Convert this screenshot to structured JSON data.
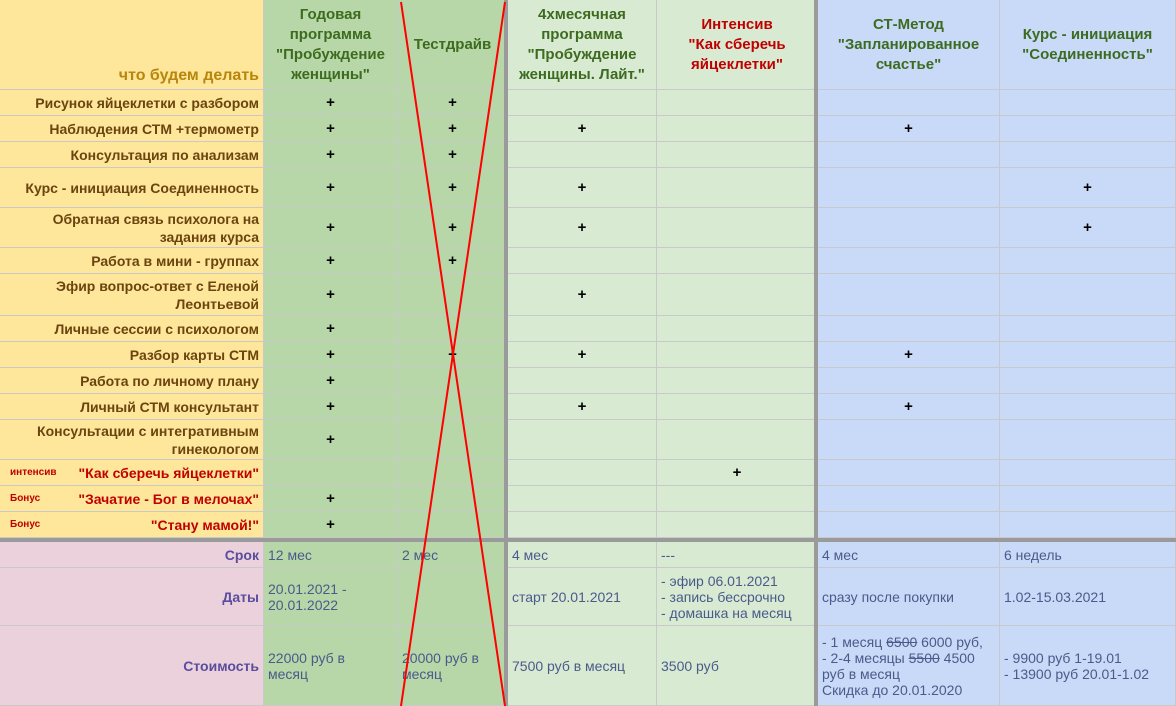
{
  "header": {
    "corner": "что будем делать",
    "columns": [
      "Годовая программа \"Пробуждение женщины\"",
      "Тестдрайв",
      "4хмесячная программа \"Пробуждение женщины. Лайт.\"",
      "Интенсив\n\"Как сберечь яйцеклетки\"",
      "СТ-Метод \"Запланированное счастье\"",
      "Курс - инициация \"Соединенность\""
    ]
  },
  "rows": [
    {
      "label": "Рисунок яйцеклетки с разбором",
      "tag": "",
      "marks": [
        "+",
        "+",
        "",
        "",
        "",
        ""
      ]
    },
    {
      "label": "Наблюдения СТМ +термометр",
      "tag": "",
      "marks": [
        "+",
        "+",
        "+",
        "",
        "+",
        ""
      ]
    },
    {
      "label": "Консультация по анализам",
      "tag": "",
      "marks": [
        "+",
        "+",
        "",
        "",
        "",
        ""
      ]
    },
    {
      "label": "Курс - инициация Соединенность",
      "tag": "",
      "marks": [
        "+",
        "+",
        "+",
        "",
        "",
        "+"
      ]
    },
    {
      "label": "Обратная связь психолога на задания курса",
      "tag": "",
      "marks": [
        "+",
        "+",
        "+",
        "",
        "",
        "+"
      ]
    },
    {
      "label": "Работа в мини - группах",
      "tag": "",
      "marks": [
        "+",
        "+",
        "",
        "",
        "",
        ""
      ]
    },
    {
      "label": "Эфир вопрос-ответ с Еленой Леонтьевой",
      "tag": "",
      "marks": [
        "+",
        "",
        "+",
        "",
        "",
        ""
      ]
    },
    {
      "label": "Личные сессии с психологом",
      "tag": "",
      "marks": [
        "+",
        "",
        "",
        "",
        "",
        ""
      ]
    },
    {
      "label": "Разбор карты СТМ",
      "tag": "",
      "marks": [
        "+",
        "+",
        "+",
        "",
        "+",
        ""
      ]
    },
    {
      "label": "Работа по личному плану",
      "tag": "",
      "marks": [
        "+",
        "",
        "",
        "",
        "",
        ""
      ]
    },
    {
      "label": "Личный СТМ консультант",
      "tag": "",
      "marks": [
        "+",
        "",
        "+",
        "",
        "+",
        ""
      ]
    },
    {
      "label": "Консультации с интегративным гинекологом",
      "tag": "",
      "marks": [
        "+",
        "",
        "",
        "",
        "",
        ""
      ]
    },
    {
      "label": "\"Как сберечь яйцеклетки\"",
      "tag": "интенсив",
      "marks": [
        "",
        "",
        "",
        "+",
        "",
        ""
      ]
    },
    {
      "label": "\"Зачатие - Бог в мелочах\"",
      "tag": "Бонус",
      "marks": [
        "+",
        "",
        "",
        "",
        "",
        ""
      ]
    },
    {
      "label": "\"Стану мамой!\"",
      "tag": "Бонус",
      "marks": [
        "+",
        "",
        "",
        "",
        "",
        ""
      ]
    }
  ],
  "bottom": {
    "srok": {
      "label": "Срок",
      "values": [
        "12 мес",
        "2 мес",
        "4 мес",
        "---",
        "4 мес",
        "6 недель"
      ]
    },
    "daty": {
      "label": "Даты",
      "values": [
        "20.01.2021 -\n20.01.2022",
        "",
        "старт 20.01.2021",
        "- эфир 06.01.2021\n- запись бессрочно\n- домашка на месяц",
        "сразу после покупки",
        "1.02-15.03.2021"
      ]
    },
    "cost": {
      "label": "Стоимость",
      "values": [
        "22000 руб в\nмесяц",
        "20000 руб в\nмесяц",
        "7500 руб в месяц",
        "3500 руб",
        "",
        "- 9900 руб 1-19.01\n- 13900 руб 20.01-1.02"
      ]
    },
    "stm_cost": {
      "l1_pre": "- 1 месяц ",
      "l1_old": "6500",
      "l1_new": " 6000 руб,",
      "l2_pre": "- 2-4 месяцы ",
      "l2_old": "5500",
      "l2_new": " 4500",
      "l3": "руб в месяц",
      "l4": "Скидка до 20.01.2020"
    }
  },
  "colors": {
    "label_bg": "#fee79a",
    "year_bg": "#b7d7a8",
    "lite_bg": "#d9ead3",
    "stm_bg": "#c9daf8",
    "bottom_label_bg": "#ead1dc",
    "cross": "#ff0000"
  }
}
